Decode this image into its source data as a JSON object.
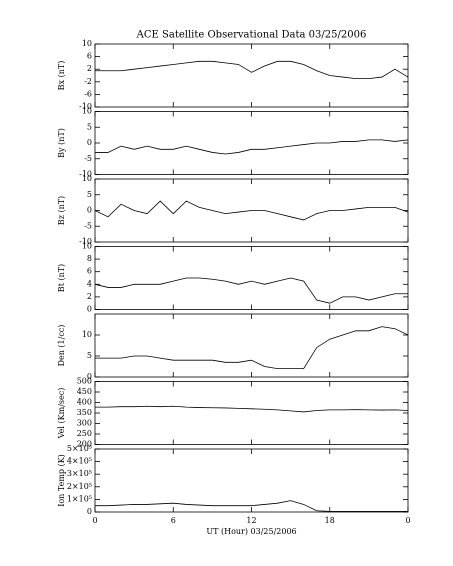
{
  "chart_data": [
    {
      "type": "line",
      "title": "ACE Satellite Observational Data   03/25/2006",
      "ylabel": "Bx (nT)",
      "x": [
        0,
        1,
        2,
        3,
        4,
        5,
        6,
        7,
        8,
        9,
        10,
        11,
        12,
        13,
        14,
        15,
        16,
        17,
        18,
        19,
        20,
        21,
        22,
        23,
        24
      ],
      "series": [
        {
          "color": "#000000",
          "values": [
            1.5,
            1.5,
            1.5,
            2,
            2.5,
            3,
            3.5,
            4,
            4.5,
            4.5,
            4,
            3.5,
            1,
            3,
            4.5,
            4.5,
            3.5,
            1.5,
            0,
            -0.5,
            -1,
            -1,
            -0.5,
            2,
            -0.5
          ]
        }
      ],
      "xlim": [
        0,
        24
      ],
      "ylim": [
        -10,
        10
      ],
      "yticks": [
        -10,
        -6,
        -2,
        2,
        6,
        10
      ]
    },
    {
      "type": "line",
      "ylabel": "By (nT)",
      "x": [
        0,
        1,
        2,
        3,
        4,
        5,
        6,
        7,
        8,
        9,
        10,
        11,
        12,
        13,
        14,
        15,
        16,
        17,
        18,
        19,
        20,
        21,
        22,
        23,
        24
      ],
      "series": [
        {
          "color": "#000000",
          "values": [
            -3,
            -3,
            -1,
            -2,
            -1,
            -2,
            -2,
            -1,
            -2,
            -3,
            -3.5,
            -3,
            -2,
            -2,
            -1.5,
            -1,
            -0.5,
            0,
            0,
            0.5,
            0.5,
            1,
            1,
            0.5,
            1
          ]
        }
      ],
      "xlim": [
        0,
        24
      ],
      "ylim": [
        -10,
        10
      ],
      "yticks": [
        -10,
        -5,
        0,
        5,
        10
      ]
    },
    {
      "type": "line",
      "ylabel": "Bz (nT)",
      "x": [
        0,
        1,
        2,
        3,
        4,
        5,
        6,
        7,
        8,
        9,
        10,
        11,
        12,
        13,
        14,
        15,
        16,
        17,
        18,
        19,
        20,
        21,
        22,
        23,
        24
      ],
      "series": [
        {
          "color": "#000000",
          "values": [
            0,
            -2,
            2,
            0,
            -1,
            3,
            -1,
            3,
            1,
            0,
            -1,
            -0.5,
            0,
            0,
            -1,
            -2,
            -3,
            -1,
            0,
            0,
            0.5,
            1,
            1,
            1,
            -0.5
          ]
        }
      ],
      "xlim": [
        0,
        24
      ],
      "ylim": [
        -10,
        10
      ],
      "yticks": [
        -10,
        -5,
        0,
        5,
        10
      ]
    },
    {
      "type": "line",
      "ylabel": "Bt (nT)",
      "x": [
        0,
        1,
        2,
        3,
        4,
        5,
        6,
        7,
        8,
        9,
        10,
        11,
        12,
        13,
        14,
        15,
        16,
        17,
        18,
        19,
        20,
        21,
        22,
        23,
        24
      ],
      "series": [
        {
          "color": "#000000",
          "values": [
            4,
            3.5,
            3.5,
            4,
            4,
            4,
            4.5,
            5,
            5,
            4.8,
            4.5,
            4,
            4.5,
            4,
            4.5,
            5,
            4.5,
            1.5,
            1,
            2,
            2,
            1.5,
            2,
            2.5,
            2.5
          ]
        }
      ],
      "xlim": [
        0,
        24
      ],
      "ylim": [
        0,
        10
      ],
      "yticks": [
        0,
        2,
        4,
        6,
        8,
        10
      ]
    },
    {
      "type": "line",
      "ylabel": "Den (1/cc)",
      "x": [
        0,
        1,
        2,
        3,
        4,
        5,
        6,
        7,
        8,
        9,
        10,
        11,
        12,
        13,
        14,
        15,
        16,
        17,
        18,
        19,
        20,
        21,
        22,
        23,
        24
      ],
      "series": [
        {
          "color": "#000000",
          "values": [
            4.5,
            4.5,
            4.5,
            5,
            5,
            4.5,
            4,
            4,
            4,
            4,
            3.5,
            3.5,
            4,
            2.5,
            2,
            2,
            2,
            7,
            9,
            10,
            11,
            11,
            12,
            11.5,
            10
          ]
        }
      ],
      "xlim": [
        0,
        24
      ],
      "ylim": [
        0,
        15
      ],
      "yticks": [
        0,
        5,
        10
      ]
    },
    {
      "type": "line",
      "ylabel": "Vel (Km/sec)",
      "x": [
        0,
        1,
        2,
        3,
        4,
        5,
        6,
        7,
        8,
        9,
        10,
        11,
        12,
        13,
        14,
        15,
        16,
        17,
        18,
        19,
        20,
        21,
        22,
        23,
        24
      ],
      "series": [
        {
          "color": "#000000",
          "values": [
            378,
            378,
            380,
            380,
            382,
            380,
            382,
            378,
            376,
            375,
            374,
            372,
            370,
            368,
            365,
            360,
            355,
            362,
            365,
            365,
            366,
            365,
            364,
            365,
            362
          ]
        }
      ],
      "xlim": [
        0,
        24
      ],
      "ylim": [
        200,
        500
      ],
      "yticks": [
        200,
        250,
        300,
        350,
        400,
        450,
        500
      ]
    },
    {
      "type": "line",
      "ylabel": "Ion Temp (K)",
      "xlabel": "UT (Hour)   03/25/2006",
      "x": [
        0,
        1,
        2,
        3,
        4,
        5,
        6,
        7,
        8,
        9,
        10,
        11,
        12,
        13,
        14,
        15,
        16,
        17,
        18,
        19,
        20,
        21,
        22,
        23,
        24
      ],
      "series": [
        {
          "color": "#000000",
          "values": [
            50000,
            50000,
            55000,
            60000,
            60000,
            65000,
            70000,
            60000,
            55000,
            50000,
            50000,
            50000,
            50000,
            60000,
            70000,
            90000,
            60000,
            10000,
            5000,
            5000,
            5000,
            5000,
            5000,
            5000,
            5000
          ]
        }
      ],
      "xlim": [
        0,
        24
      ],
      "xticks": [
        0,
        6,
        12,
        18,
        {
          "value": 24,
          "label": "0"
        }
      ],
      "ylim": [
        0,
        500000
      ],
      "yticks": [
        0,
        {
          "value": 100000,
          "label": "1×10⁵"
        },
        {
          "value": 200000,
          "label": "2×10⁵"
        },
        {
          "value": 300000,
          "label": "3×10⁵"
        },
        {
          "value": 400000,
          "label": "4×10⁵"
        },
        {
          "value": 500000,
          "label": "5×10⁵"
        }
      ]
    }
  ]
}
